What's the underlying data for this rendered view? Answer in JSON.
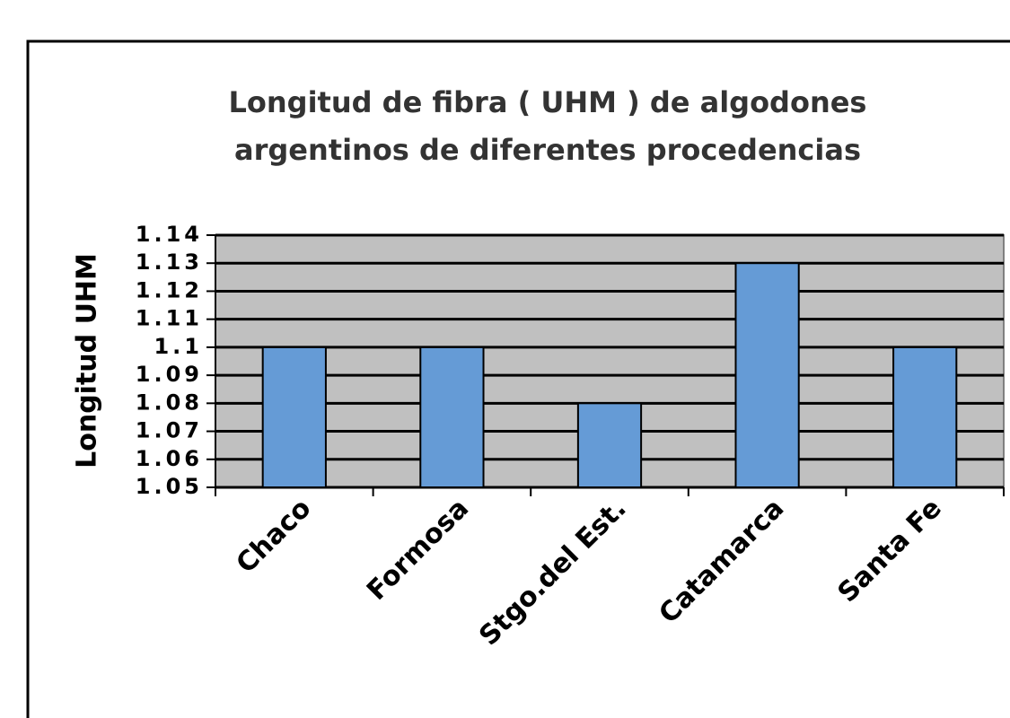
{
  "chart_data": {
    "type": "bar",
    "title": "Longitud de fibra ( UHM ) de algodones argentinos de diferentes procedencias",
    "y_label": "Longitud UHM",
    "categories": [
      "Chaco",
      "Formosa",
      "Stgo.del Est.",
      "Catamarca",
      "Santa Fe"
    ],
    "values": [
      1.1,
      1.1,
      1.08,
      1.13,
      1.1
    ],
    "color": "#659bd6",
    "ylim": [
      1.05,
      1.14
    ],
    "yticks": [
      1.05,
      1.06,
      1.07,
      1.08,
      1.09,
      1.1,
      1.11,
      1.12,
      1.13,
      1.14
    ],
    "grid": true
  }
}
